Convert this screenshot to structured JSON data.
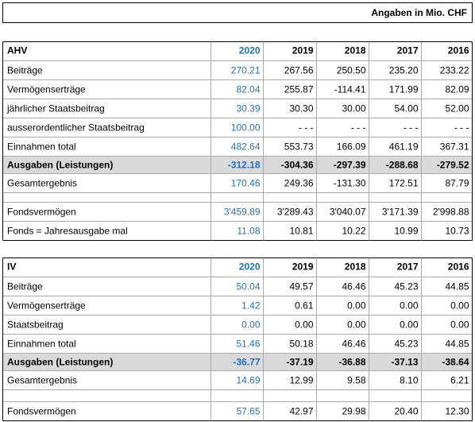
{
  "header": {
    "title": "Angaben  in Mio. CHF"
  },
  "sections": [
    {
      "title": "AHV",
      "years": [
        "2020",
        "2019",
        "2018",
        "2017",
        "2016"
      ],
      "rows": [
        {
          "label": "Beiträge",
          "values": [
            "270.21",
            "267.56",
            "250.50",
            "235.20",
            "233.22"
          ]
        },
        {
          "label": "Vermögenserträge",
          "values": [
            "82.04",
            "255.87",
            "-114.41",
            "171.99",
            "82.09"
          ]
        },
        {
          "label": "jährlicher Staatsbeitrag",
          "values": [
            "30.39",
            "30.30",
            "30.00",
            "54.00",
            "52.00"
          ]
        },
        {
          "label": "ausserordentlicher Staatsbeitrag",
          "values": [
            "100.00",
            "- - -",
            "- - -",
            "- - -",
            "- - -"
          ]
        },
        {
          "label": "Einnahmen total",
          "values": [
            "482.64",
            "553.73",
            "166.09",
            "461.19",
            "367.31"
          ]
        },
        {
          "label": "Ausgaben  (Leistungen)",
          "values": [
            "-312.18",
            "-304.36",
            "-297.39",
            "-288.68",
            "-279.52"
          ]
        },
        {
          "label": "Gesamtergebnis",
          "values": [
            "170.46",
            "249.36",
            "-131.30",
            "172.51",
            "87.79"
          ]
        },
        {
          "label": "Fondsvermögen",
          "values": [
            "3'459.89",
            "3'289.43",
            "3'040.07",
            "3'171.39",
            "2'998.88"
          ]
        },
        {
          "label": "Fonds = Jahresausgabe mal",
          "values": [
            "11.08",
            "10.81",
            "10.22",
            "10.99",
            "10.73"
          ]
        }
      ]
    },
    {
      "title": "IV",
      "years": [
        "2020",
        "2019",
        "2018",
        "2017",
        "2016"
      ],
      "rows": [
        {
          "label": "Beiträge",
          "values": [
            "50.04",
            "49.57",
            "46.46",
            "45.23",
            "44.85"
          ]
        },
        {
          "label": "Vermögenserträge",
          "values": [
            "1.42",
            "0.61",
            "0.00",
            "0.00",
            "0.00"
          ]
        },
        {
          "label": "Staatsbeitrag",
          "values": [
            "0.00",
            "0.00",
            "0.00",
            "0.00",
            "0.00"
          ]
        },
        {
          "label": "Einnahmen total",
          "values": [
            "51.46",
            "50.18",
            "46.46",
            "45.23",
            "44.85"
          ]
        },
        {
          "label": "Ausgaben  (Leistungen)",
          "values": [
            "-36.77",
            "-37.19",
            "-36.88",
            "-37.13",
            "-38.64"
          ]
        },
        {
          "label": "Gesamtergebnis",
          "values": [
            "14.69",
            "12.99",
            "9.58",
            "8.10",
            "6.21"
          ]
        },
        {
          "label": "Fondsvermögen",
          "values": [
            "57.65",
            "42.97",
            "29.98",
            "20.40",
            "12.30"
          ]
        }
      ]
    }
  ]
}
